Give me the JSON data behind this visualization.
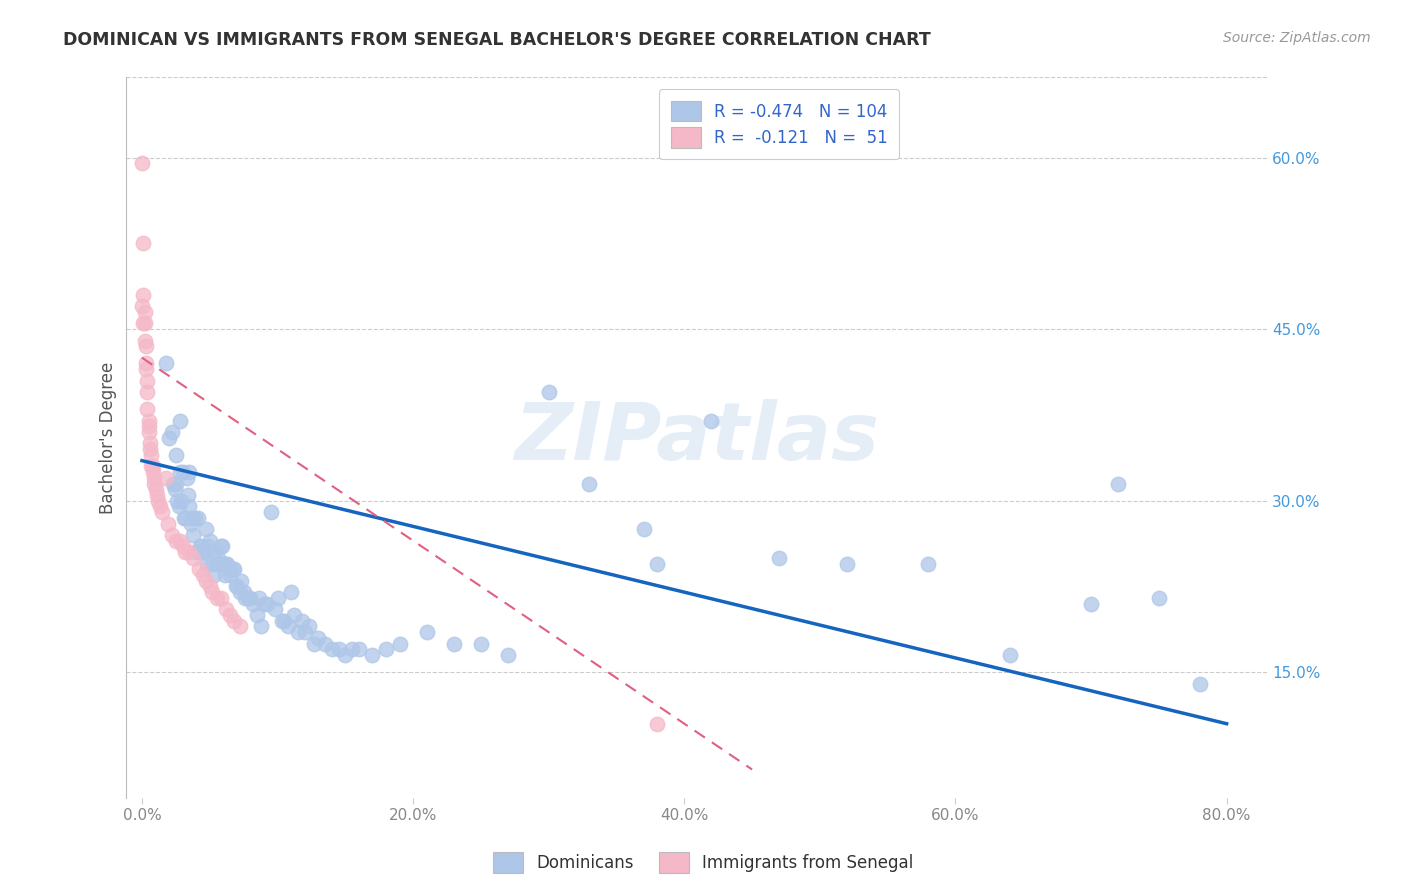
{
  "title": "DOMINICAN VS IMMIGRANTS FROM SENEGAL BACHELOR'S DEGREE CORRELATION CHART",
  "source": "Source: ZipAtlas.com",
  "ylabel": "Bachelor's Degree",
  "xlabel_ticks": [
    "0.0%",
    "20.0%",
    "40.0%",
    "60.0%",
    "80.0%"
  ],
  "xlabel_vals": [
    0.0,
    0.2,
    0.4,
    0.6,
    0.8
  ],
  "ylabel_ticks": [
    "15.0%",
    "30.0%",
    "45.0%",
    "60.0%"
  ],
  "ylabel_vals": [
    0.15,
    0.3,
    0.45,
    0.6
  ],
  "xlim": [
    -0.012,
    0.83
  ],
  "ylim": [
    0.04,
    0.67
  ],
  "blue_R": -0.474,
  "blue_N": 104,
  "pink_R": -0.121,
  "pink_N": 51,
  "blue_color": "#aec6e8",
  "pink_color": "#f4b8c8",
  "blue_line_color": "#1565c0",
  "pink_line_color": "#e06080",
  "watermark": "ZIPatlas",
  "legend_label_blue": "Dominicans",
  "legend_label_pink": "Immigrants from Senegal",
  "blue_line_x0": 0.0,
  "blue_line_y0": 0.335,
  "blue_line_x1": 0.8,
  "blue_line_y1": 0.105,
  "pink_line_x0": 0.0,
  "pink_line_y0": 0.425,
  "pink_line_x1": 0.45,
  "pink_line_y1": 0.065,
  "blue_x": [
    0.018,
    0.02,
    0.022,
    0.023,
    0.024,
    0.025,
    0.025,
    0.026,
    0.027,
    0.028,
    0.028,
    0.029,
    0.03,
    0.031,
    0.032,
    0.033,
    0.034,
    0.035,
    0.035,
    0.036,
    0.037,
    0.038,
    0.039,
    0.04,
    0.041,
    0.042,
    0.043,
    0.044,
    0.045,
    0.046,
    0.047,
    0.048,
    0.049,
    0.05,
    0.052,
    0.053,
    0.054,
    0.055,
    0.056,
    0.057,
    0.058,
    0.059,
    0.06,
    0.061,
    0.062,
    0.063,
    0.064,
    0.065,
    0.067,
    0.068,
    0.069,
    0.07,
    0.072,
    0.073,
    0.075,
    0.076,
    0.078,
    0.08,
    0.082,
    0.085,
    0.086,
    0.088,
    0.09,
    0.092,
    0.095,
    0.098,
    0.1,
    0.103,
    0.105,
    0.108,
    0.11,
    0.112,
    0.115,
    0.118,
    0.12,
    0.123,
    0.127,
    0.13,
    0.135,
    0.14,
    0.145,
    0.15,
    0.155,
    0.16,
    0.17,
    0.18,
    0.19,
    0.21,
    0.23,
    0.25,
    0.27,
    0.3,
    0.33,
    0.37,
    0.42,
    0.47,
    0.52,
    0.58,
    0.64,
    0.7,
    0.72,
    0.75,
    0.78,
    0.38
  ],
  "blue_y": [
    0.42,
    0.355,
    0.36,
    0.315,
    0.31,
    0.34,
    0.315,
    0.3,
    0.295,
    0.37,
    0.325,
    0.3,
    0.325,
    0.285,
    0.285,
    0.32,
    0.305,
    0.295,
    0.325,
    0.28,
    0.285,
    0.27,
    0.285,
    0.255,
    0.285,
    0.255,
    0.26,
    0.26,
    0.255,
    0.255,
    0.275,
    0.245,
    0.26,
    0.265,
    0.245,
    0.235,
    0.255,
    0.245,
    0.25,
    0.245,
    0.26,
    0.26,
    0.245,
    0.235,
    0.245,
    0.245,
    0.24,
    0.235,
    0.24,
    0.24,
    0.225,
    0.225,
    0.22,
    0.23,
    0.22,
    0.215,
    0.215,
    0.215,
    0.21,
    0.2,
    0.215,
    0.19,
    0.21,
    0.21,
    0.29,
    0.205,
    0.215,
    0.195,
    0.195,
    0.19,
    0.22,
    0.2,
    0.185,
    0.195,
    0.185,
    0.19,
    0.175,
    0.18,
    0.175,
    0.17,
    0.17,
    0.165,
    0.17,
    0.17,
    0.165,
    0.17,
    0.175,
    0.185,
    0.175,
    0.175,
    0.165,
    0.395,
    0.315,
    0.275,
    0.37,
    0.25,
    0.245,
    0.245,
    0.165,
    0.21,
    0.315,
    0.215,
    0.14,
    0.245
  ],
  "pink_x": [
    0.0,
    0.001,
    0.001,
    0.002,
    0.002,
    0.002,
    0.003,
    0.003,
    0.003,
    0.004,
    0.004,
    0.004,
    0.005,
    0.005,
    0.005,
    0.006,
    0.006,
    0.007,
    0.007,
    0.008,
    0.008,
    0.009,
    0.009,
    0.01,
    0.011,
    0.012,
    0.013,
    0.015,
    0.018,
    0.019,
    0.022,
    0.025,
    0.028,
    0.03,
    0.032,
    0.035,
    0.038,
    0.042,
    0.045,
    0.047,
    0.05,
    0.052,
    0.055,
    0.058,
    0.062,
    0.065,
    0.068,
    0.072,
    0.0,
    0.001,
    0.38
  ],
  "pink_y": [
    0.595,
    0.525,
    0.48,
    0.465,
    0.455,
    0.44,
    0.435,
    0.42,
    0.415,
    0.405,
    0.395,
    0.38,
    0.37,
    0.365,
    0.36,
    0.35,
    0.345,
    0.34,
    0.33,
    0.33,
    0.325,
    0.32,
    0.315,
    0.31,
    0.305,
    0.3,
    0.295,
    0.29,
    0.32,
    0.28,
    0.27,
    0.265,
    0.265,
    0.26,
    0.255,
    0.255,
    0.25,
    0.24,
    0.235,
    0.23,
    0.225,
    0.22,
    0.215,
    0.215,
    0.205,
    0.2,
    0.195,
    0.19,
    0.47,
    0.455,
    0.105
  ]
}
